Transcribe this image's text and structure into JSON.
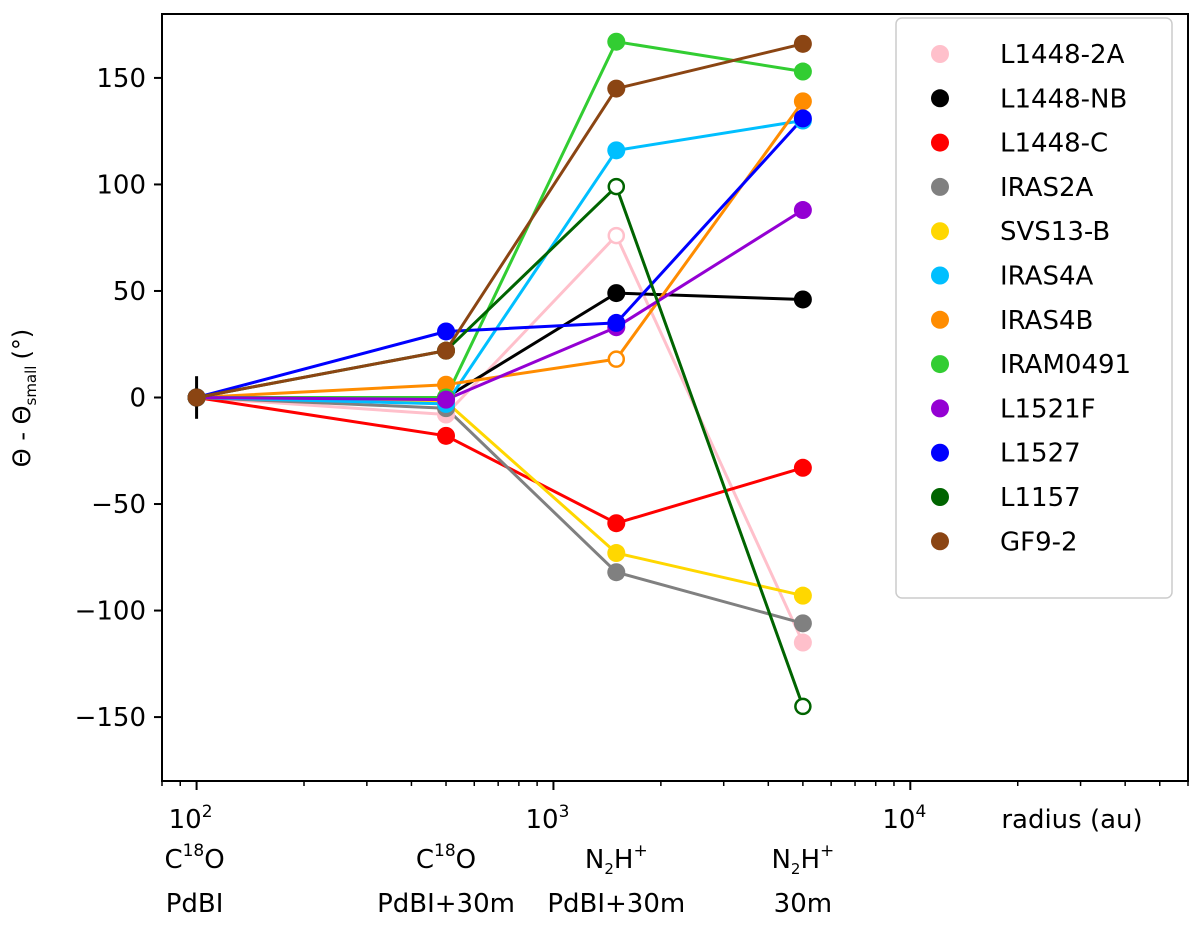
{
  "chart_data": {
    "type": "line",
    "title": "",
    "xscale": "log",
    "xlim": [
      80,
      60000
    ],
    "ylim": [
      -180,
      180
    ],
    "xlabel": "radius (au)",
    "ylabel": {
      "main": "Θ - Θ",
      "sub": "small",
      "unit": "(°)"
    },
    "x_ticks": [
      {
        "value": 100,
        "base": "10",
        "exp": "2"
      },
      {
        "value": 1000,
        "base": "10",
        "exp": "3"
      },
      {
        "value": 10000,
        "base": "10",
        "exp": "4"
      }
    ],
    "y_ticks": [
      {
        "value": 150,
        "label": "150"
      },
      {
        "value": 100,
        "label": "100"
      },
      {
        "value": 50,
        "label": "50"
      },
      {
        "value": 0,
        "label": "0"
      },
      {
        "value": -50,
        "label": "−50"
      },
      {
        "value": -100,
        "label": "−100"
      },
      {
        "value": -150,
        "label": "−150"
      }
    ],
    "x": [
      100,
      500,
      1500,
      5000
    ],
    "category_labels": [
      {
        "x": 100,
        "line1": {
          "pre": "C",
          "sup": "18",
          "post": "O"
        },
        "line2": "PdBI"
      },
      {
        "x": 500,
        "line1": {
          "pre": "C",
          "sup": "18",
          "post": "O"
        },
        "line2": "PdBI+30m"
      },
      {
        "x": 1500,
        "line1": {
          "pre": "N",
          "sub": "2",
          "mid": "H",
          "sup": "+"
        },
        "line2": "PdBI+30m"
      },
      {
        "x": 5000,
        "line1": {
          "pre": "N",
          "sub": "2",
          "mid": "H",
          "sup": "+"
        },
        "line2": "30m"
      }
    ],
    "reference_point": {
      "x": 100,
      "y": 0,
      "yerr": 10
    },
    "series": [
      {
        "name": "L1448-2A",
        "color": "#ffc0cb",
        "values": [
          0,
          -8,
          76,
          -115
        ],
        "open": [
          false,
          false,
          true,
          false
        ]
      },
      {
        "name": "L1448-NB",
        "color": "#000000",
        "values": [
          0,
          0,
          49,
          46
        ],
        "open": [
          false,
          false,
          false,
          false
        ]
      },
      {
        "name": "L1448-C",
        "color": "#ff0000",
        "values": [
          0,
          -18,
          -59,
          -33
        ],
        "open": [
          false,
          false,
          false,
          false
        ]
      },
      {
        "name": "IRAS2A",
        "color": "#808080",
        "values": [
          0,
          -5,
          -82,
          -106
        ],
        "open": [
          false,
          false,
          false,
          false
        ]
      },
      {
        "name": "SVS13-B",
        "color": "#ffd700",
        "values": [
          0,
          -2,
          -73,
          -93
        ],
        "open": [
          false,
          false,
          false,
          false
        ]
      },
      {
        "name": "IRAS4A",
        "color": "#00bfff",
        "values": [
          0,
          -3,
          116,
          130
        ],
        "open": [
          false,
          false,
          false,
          false
        ]
      },
      {
        "name": "IRAS4B",
        "color": "#ff8c00",
        "values": [
          0,
          6,
          18,
          139
        ],
        "open": [
          false,
          false,
          true,
          false
        ]
      },
      {
        "name": "IRAM0491",
        "color": "#32cd32",
        "values": [
          0,
          0,
          167,
          153
        ],
        "open": [
          false,
          false,
          false,
          false
        ]
      },
      {
        "name": "L1521F",
        "color": "#9400d3",
        "values": [
          0,
          -1,
          33,
          88
        ],
        "open": [
          false,
          false,
          false,
          false
        ]
      },
      {
        "name": "L1527",
        "color": "#0000ff",
        "values": [
          0,
          31,
          35,
          131
        ],
        "open": [
          false,
          false,
          false,
          false
        ]
      },
      {
        "name": "L1157",
        "color": "#006400",
        "values": [
          0,
          22,
          99,
          -145
        ],
        "open": [
          false,
          false,
          true,
          true
        ]
      },
      {
        "name": "GF9-2",
        "color": "#8b4513",
        "values": [
          0,
          22,
          145,
          166
        ],
        "open": [
          false,
          false,
          false,
          false
        ]
      }
    ],
    "legend_position": "top-right"
  }
}
